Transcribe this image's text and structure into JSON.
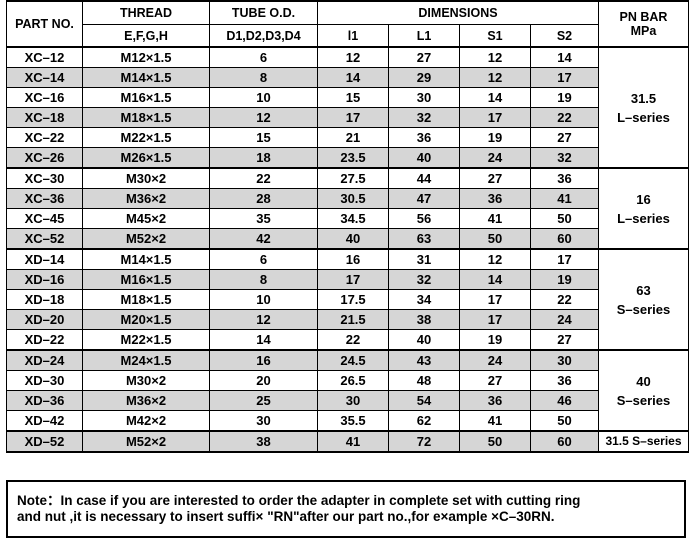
{
  "header": {
    "part_no": "PART NO.",
    "thread": "THREAD",
    "thread_sub": "E,F,G,H",
    "tube_od": "TUBE O.D.",
    "tube_od_sub": "D1,D2,D3,D4",
    "dimensions": "DIMENSIONS",
    "dim_cols": [
      "l1",
      "L1",
      "S1",
      "S2"
    ],
    "pn_bar": "PN BAR",
    "pn_unit": "MPa"
  },
  "groups": [
    {
      "pn_value": "31.5",
      "pn_series": "L–series",
      "rows": [
        {
          "part": "XC–12",
          "thread": "M12×1.5",
          "tube": "6",
          "l1": "12",
          "L1": "27",
          "S1": "12",
          "S2": "14"
        },
        {
          "part": "XC–14",
          "thread": "M14×1.5",
          "tube": "8",
          "l1": "14",
          "L1": "29",
          "S1": "12",
          "S2": "17"
        },
        {
          "part": "XC–16",
          "thread": "M16×1.5",
          "tube": "10",
          "l1": "15",
          "L1": "30",
          "S1": "14",
          "S2": "19"
        },
        {
          "part": "XC–18",
          "thread": "M18×1.5",
          "tube": "12",
          "l1": "17",
          "L1": "32",
          "S1": "17",
          "S2": "22"
        },
        {
          "part": "XC–22",
          "thread": "M22×1.5",
          "tube": "15",
          "l1": "21",
          "L1": "36",
          "S1": "19",
          "S2": "27"
        },
        {
          "part": "XC–26",
          "thread": "M26×1.5",
          "tube": "18",
          "l1": "23.5",
          "L1": "40",
          "S1": "24",
          "S2": "32"
        }
      ]
    },
    {
      "pn_value": "16",
      "pn_series": "L–series",
      "rows": [
        {
          "part": "XC–30",
          "thread": "M30×2",
          "tube": "22",
          "l1": "27.5",
          "L1": "44",
          "S1": "27",
          "S2": "36"
        },
        {
          "part": "XC–36",
          "thread": "M36×2",
          "tube": "28",
          "l1": "30.5",
          "L1": "47",
          "S1": "36",
          "S2": "41"
        },
        {
          "part": "XC–45",
          "thread": "M45×2",
          "tube": "35",
          "l1": "34.5",
          "L1": "56",
          "S1": "41",
          "S2": "50"
        },
        {
          "part": "XC–52",
          "thread": "M52×2",
          "tube": "42",
          "l1": "40",
          "L1": "63",
          "S1": "50",
          "S2": "60"
        }
      ]
    },
    {
      "pn_value": "63",
      "pn_series": "S–series",
      "rows": [
        {
          "part": "XD–14",
          "thread": "M14×1.5",
          "tube": "6",
          "l1": "16",
          "L1": "31",
          "S1": "12",
          "S2": "17"
        },
        {
          "part": "XD–16",
          "thread": "M16×1.5",
          "tube": "8",
          "l1": "17",
          "L1": "32",
          "S1": "14",
          "S2": "19"
        },
        {
          "part": "XD–18",
          "thread": "M18×1.5",
          "tube": "10",
          "l1": "17.5",
          "L1": "34",
          "S1": "17",
          "S2": "22"
        },
        {
          "part": "XD–20",
          "thread": "M20×1.5",
          "tube": "12",
          "l1": "21.5",
          "L1": "38",
          "S1": "17",
          "S2": "24"
        },
        {
          "part": "XD–22",
          "thread": "M22×1.5",
          "tube": "14",
          "l1": "22",
          "L1": "40",
          "S1": "19",
          "S2": "27"
        }
      ]
    },
    {
      "pn_value": "40",
      "pn_series": "S–series",
      "rows": [
        {
          "part": "XD–24",
          "thread": "M24×1.5",
          "tube": "16",
          "l1": "24.5",
          "L1": "43",
          "S1": "24",
          "S2": "30"
        },
        {
          "part": "XD–30",
          "thread": "M30×2",
          "tube": "20",
          "l1": "26.5",
          "L1": "48",
          "S1": "27",
          "S2": "36"
        },
        {
          "part": "XD–36",
          "thread": "M36×2",
          "tube": "25",
          "l1": "30",
          "L1": "54",
          "S1": "36",
          "S2": "46"
        },
        {
          "part": "XD–42",
          "thread": "M42×2",
          "tube": "30",
          "l1": "35.5",
          "L1": "62",
          "S1": "41",
          "S2": "50"
        }
      ]
    },
    {
      "pn_value": "31.5 S–series",
      "pn_series": "",
      "rows": [
        {
          "part": "XD–52",
          "thread": "M52×2",
          "tube": "38",
          "l1": "41",
          "L1": "72",
          "S1": "50",
          "S2": "60"
        }
      ]
    }
  ],
  "note": {
    "line1": "Note：In case if you are interested to order the adapter in complete set with cutting ring",
    "line2": "and nut ,it is necessary to insert suffi× \"RN\"after our part no.,for e×ample ×C–30RN."
  }
}
